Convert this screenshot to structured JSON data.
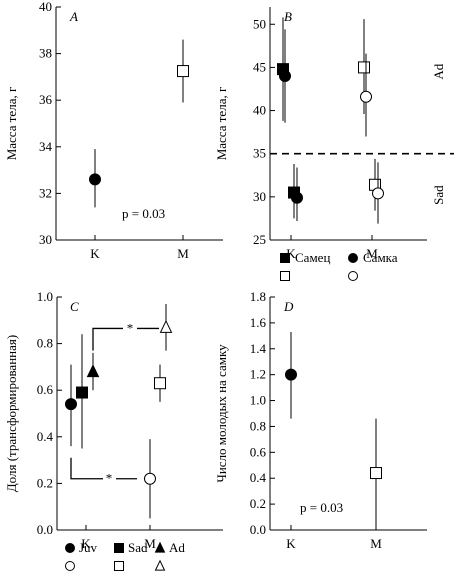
{
  "chart_data": [
    {
      "panel": "A",
      "type": "scatter",
      "ylabel": "Масса тела, г",
      "ylim": [
        30,
        40
      ],
      "yticks": [
        30,
        32,
        34,
        36,
        38,
        40
      ],
      "categories": [
        "K",
        "M"
      ],
      "series": [
        {
          "marker": "circle-filled",
          "points": [
            {
              "category": "K",
              "y": 32.6,
              "low": 31.4,
              "high": 33.9
            }
          ]
        },
        {
          "marker": "square-open",
          "points": [
            {
              "category": "M",
              "y": 37.25,
              "low": 35.9,
              "high": 38.6
            }
          ]
        }
      ],
      "annotation": "p = 0.03"
    },
    {
      "panel": "B",
      "type": "scatter",
      "ylabel": "Масса тела, г",
      "ylim": [
        25,
        52
      ],
      "yticks": [
        25,
        30,
        35,
        40,
        45,
        50
      ],
      "categories": [
        "K",
        "M"
      ],
      "threshold": 35,
      "group_labels": [
        "Ad",
        "Sad"
      ],
      "series": [
        {
          "marker": "square-filled",
          "points": [
            {
              "category": "K",
              "y": 44.8,
              "low": 38.8,
              "high": 50.8
            },
            {
              "category": "K",
              "y": 30.5,
              "low": 27.5,
              "high": 33.8
            }
          ]
        },
        {
          "marker": "circle-filled",
          "points": [
            {
              "category": "K",
              "y": 44.0,
              "low": 38.6,
              "high": 49.4
            },
            {
              "category": "K",
              "y": 29.9,
              "low": 27.2,
              "high": 33.4
            }
          ]
        },
        {
          "marker": "square-open",
          "points": [
            {
              "category": "M",
              "y": 45.0,
              "low": 39.6,
              "high": 50.6
            },
            {
              "category": "M",
              "y": 31.4,
              "low": 28.4,
              "high": 34.4
            }
          ]
        },
        {
          "marker": "circle-open",
          "points": [
            {
              "category": "M",
              "y": 41.6,
              "low": 37.0,
              "high": 46.6
            },
            {
              "category": "M",
              "y": 30.4,
              "low": 26.9,
              "high": 34.0
            }
          ]
        }
      ],
      "legend": {
        "items": [
          "Самец",
          "Самка"
        ]
      }
    },
    {
      "panel": "C",
      "type": "scatter",
      "ylabel": "Доля (трансформированная)",
      "ylim": [
        0,
        1.0
      ],
      "yticks": [
        0,
        0.2,
        0.4,
        0.6,
        0.8,
        1.0
      ],
      "categories": [
        "K",
        "M"
      ],
      "series": [
        {
          "marker": "circle-filled",
          "points": [
            {
              "category": "K",
              "y": 0.54,
              "low": 0.36,
              "high": 0.71
            }
          ]
        },
        {
          "marker": "square-filled",
          "points": [
            {
              "category": "K",
              "y": 0.59,
              "low": 0.35,
              "high": 0.84
            }
          ]
        },
        {
          "marker": "triangle-filled",
          "points": [
            {
              "category": "K",
              "y": 0.68,
              "low": 0.6,
              "high": 0.76
            }
          ]
        },
        {
          "marker": "circle-open",
          "points": [
            {
              "category": "M",
              "y": 0.22,
              "low": 0.05,
              "high": 0.39
            }
          ]
        },
        {
          "marker": "square-open",
          "points": [
            {
              "category": "M",
              "y": 0.63,
              "low": 0.55,
              "high": 0.71
            }
          ]
        },
        {
          "marker": "triangle-open",
          "points": [
            {
              "category": "M",
              "y": 0.87,
              "low": 0.77,
              "high": 0.97
            }
          ]
        }
      ],
      "significance": [
        "*",
        "*"
      ],
      "legend": {
        "items": [
          "Juv",
          "Sad",
          "Ad"
        ]
      }
    },
    {
      "panel": "D",
      "type": "scatter",
      "ylabel": "Число молодых на самку",
      "ylim": [
        0,
        1.8
      ],
      "yticks": [
        0,
        0.2,
        0.4,
        0.6,
        0.8,
        1.0,
        1.2,
        1.4,
        1.6,
        1.8
      ],
      "categories": [
        "K",
        "M"
      ],
      "series": [
        {
          "marker": "circle-filled",
          "points": [
            {
              "category": "K",
              "y": 1.2,
              "low": 0.86,
              "high": 1.53
            }
          ]
        },
        {
          "marker": "square-open",
          "points": [
            {
              "category": "M",
              "y": 0.44,
              "low": 0.03,
              "high": 0.86
            }
          ]
        }
      ],
      "annotation": "p = 0.03"
    }
  ]
}
